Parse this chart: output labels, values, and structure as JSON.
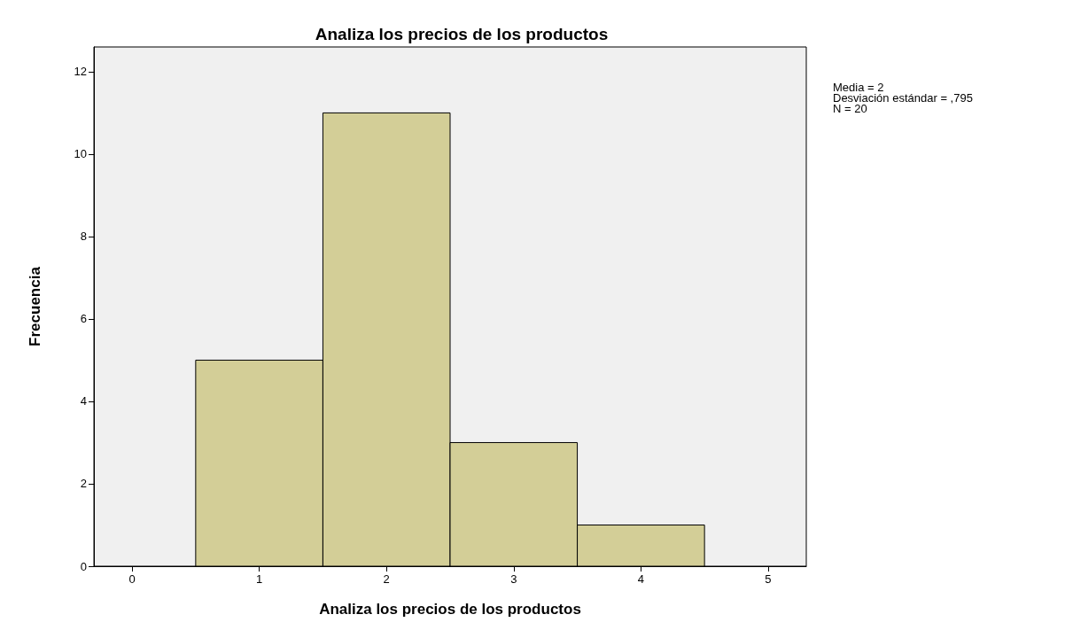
{
  "chart_data": {
    "type": "histogram",
    "title": "Analiza los precios de los productos",
    "xlabel": "Analiza los precios de los productos",
    "ylabel": "Frecuencia",
    "bins": [
      0.5,
      1.5,
      2.5,
      3.5,
      4.5
    ],
    "values": [
      5,
      11,
      3,
      1
    ],
    "color": "#d3ce97",
    "xlim": [
      -0.3,
      5.3
    ],
    "xticks": [
      0,
      1,
      2,
      3,
      4,
      5
    ],
    "ylim": [
      0,
      12.6
    ],
    "yticks": [
      0,
      2,
      4,
      6,
      8,
      10,
      12
    ],
    "grid": false,
    "annotations": [
      "Media = 2",
      "Desviación estándar = ,795",
      "N = 20"
    ]
  }
}
